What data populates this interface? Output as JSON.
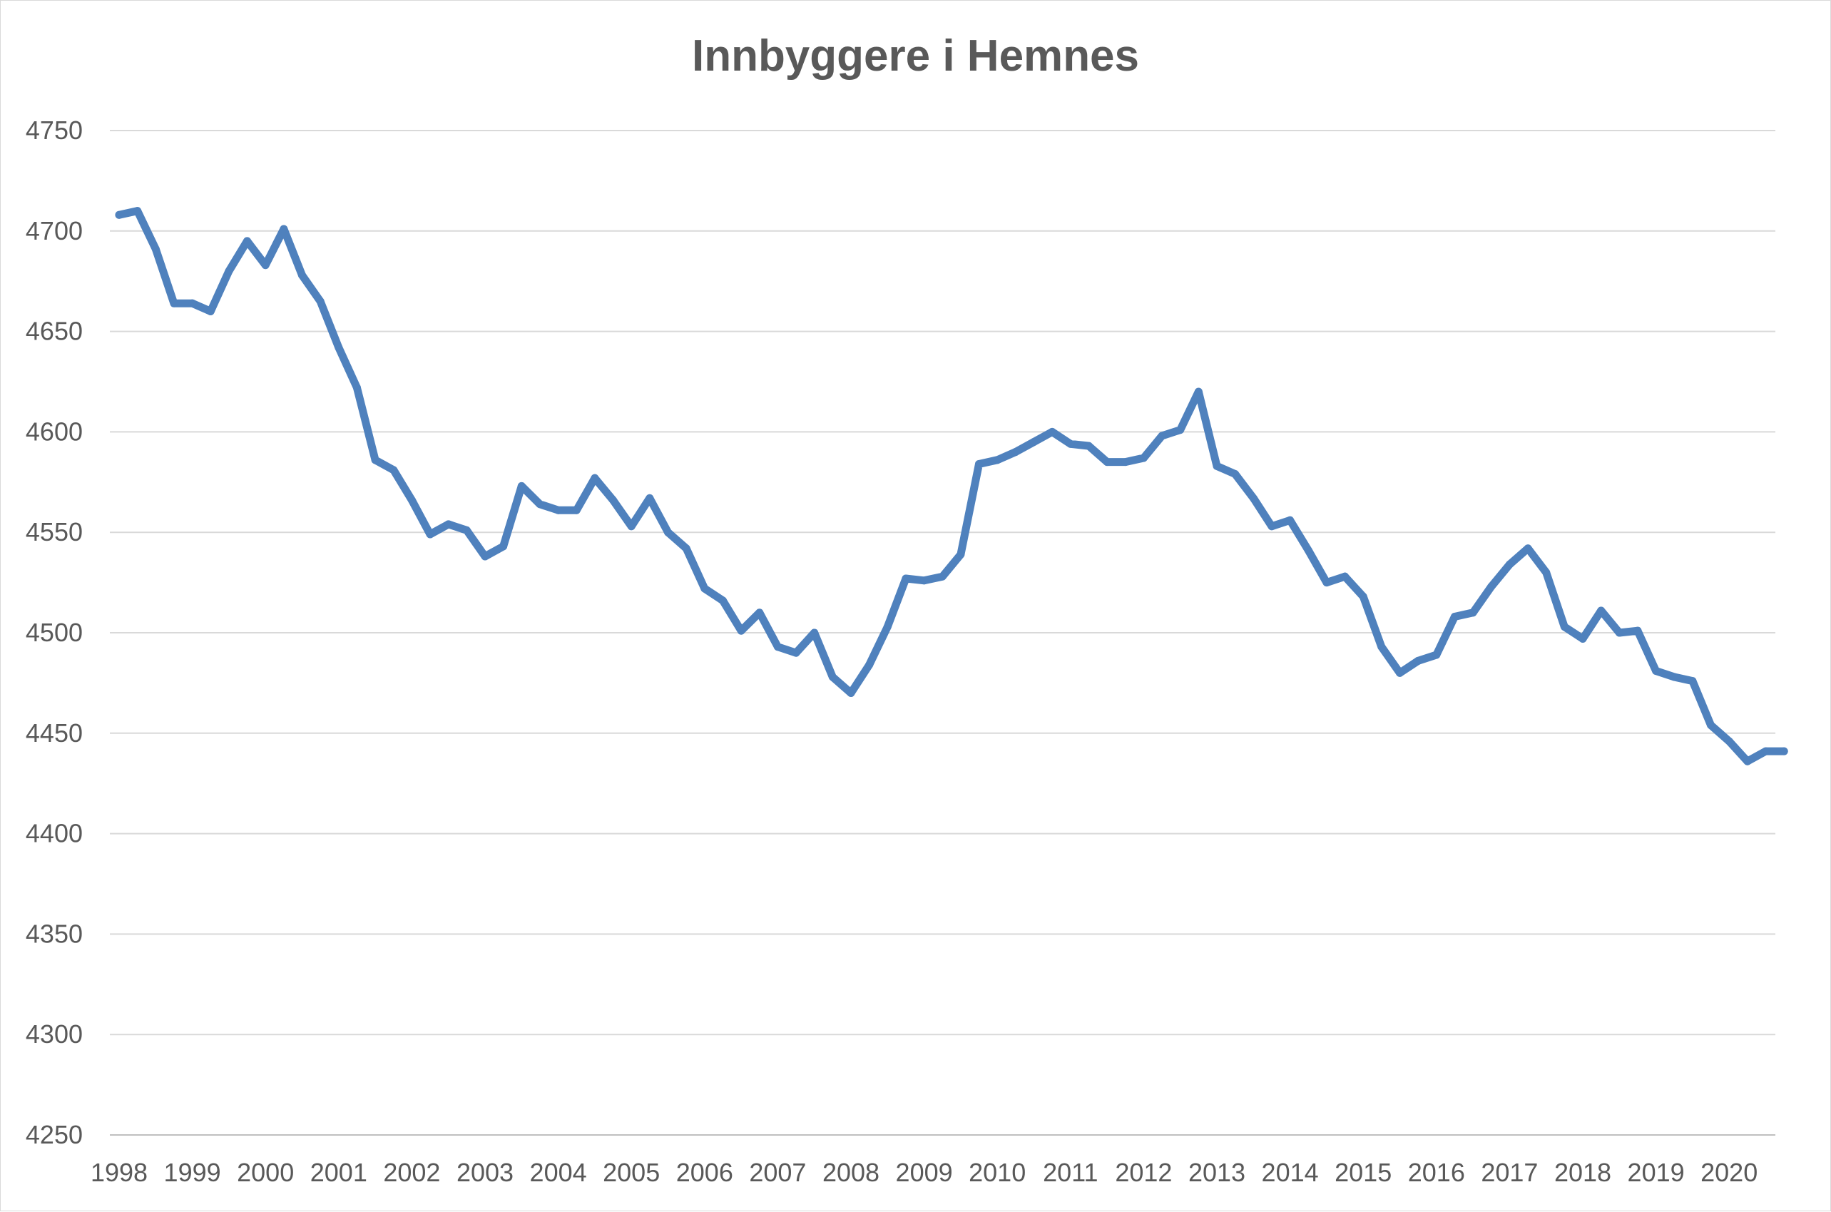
{
  "chart_data": {
    "type": "line",
    "title": "Innbyggere i Hemnes",
    "xlabel": "",
    "ylabel": "",
    "ylim": [
      4250,
      4750
    ],
    "y_ticks": [
      "4250",
      "4300",
      "4350",
      "4400",
      "4450",
      "4500",
      "4550",
      "4600",
      "4650",
      "4700",
      "4750"
    ],
    "x_ticks": [
      "1998",
      "1999",
      "2000",
      "2001",
      "2002",
      "2003",
      "2004",
      "2005",
      "2006",
      "2007",
      "2008",
      "2009",
      "2010",
      "2011",
      "2012",
      "2013",
      "2014",
      "2015",
      "2016",
      "2017",
      "2018",
      "2019",
      "2020"
    ],
    "grid": true,
    "legend": "none",
    "series": [
      {
        "color": "#4f81bd",
        "x": [
          1998.0,
          1998.25,
          1998.5,
          1998.75,
          1999.0,
          1999.25,
          1999.5,
          1999.75,
          2000.0,
          2000.25,
          2000.5,
          2000.75,
          2001.0,
          2001.25,
          2001.5,
          2001.75,
          2002.0,
          2002.25,
          2002.5,
          2002.75,
          2003.0,
          2003.25,
          2003.5,
          2003.75,
          2004.0,
          2004.25,
          2004.5,
          2004.75,
          2005.0,
          2005.25,
          2005.5,
          2005.75,
          2006.0,
          2006.25,
          2006.5,
          2006.75,
          2007.0,
          2007.25,
          2007.5,
          2007.75,
          2008.0,
          2008.25,
          2008.5,
          2008.75,
          2009.0,
          2009.25,
          2009.5,
          2009.75,
          2010.0,
          2010.25,
          2010.5,
          2010.75,
          2011.0,
          2011.25,
          2011.5,
          2011.75,
          2012.0,
          2012.25,
          2012.5,
          2012.75,
          2013.0,
          2013.25,
          2013.5,
          2013.75,
          2014.0,
          2014.25,
          2014.5,
          2014.75,
          2015.0,
          2015.25,
          2015.5,
          2015.75,
          2016.0,
          2016.25,
          2016.5,
          2016.75,
          2017.0,
          2017.25,
          2017.5,
          2017.75,
          2018.0,
          2018.25,
          2018.5,
          2018.75,
          2019.0,
          2019.25,
          2019.5,
          2019.75,
          2020.0,
          2020.25,
          2020.5,
          2020.75
        ],
        "values": [
          4708,
          4710,
          4691,
          4664,
          4664,
          4660,
          4680,
          4695,
          4683,
          4701,
          4678,
          4665,
          4642,
          4622,
          4586,
          4581,
          4566,
          4549,
          4554,
          4551,
          4538,
          4543,
          4573,
          4564,
          4561,
          4561,
          4577,
          4566,
          4553,
          4567,
          4550,
          4542,
          4522,
          4516,
          4501,
          4510,
          4493,
          4490,
          4500,
          4478,
          4470,
          4484,
          4503,
          4527,
          4526,
          4528,
          4539,
          4584,
          4586,
          4590,
          4595,
          4600,
          4594,
          4593,
          4585,
          4585,
          4587,
          4598,
          4601,
          4620,
          4583,
          4579,
          4567,
          4553,
          4556,
          4541,
          4525,
          4528,
          4518,
          4493,
          4480,
          4486,
          4489,
          4508,
          4510,
          4523,
          4534,
          4542,
          4530,
          4503,
          4497,
          4511,
          4500,
          4501,
          4481,
          4478,
          4476,
          4454,
          4446,
          4436,
          4441,
          4441
        ]
      }
    ]
  }
}
